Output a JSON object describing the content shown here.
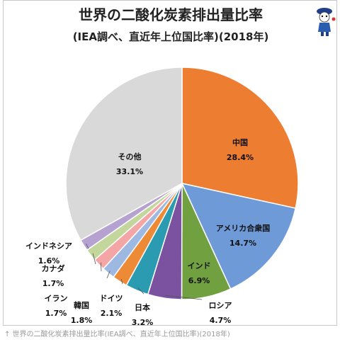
{
  "caption": "↑ 世界の二酸化炭素排出量比率(IEA調べ、直近年上位国比率)(2018年)",
  "chart_data": {
    "type": "pie",
    "title": "世界の二酸化炭素排出量比率",
    "subtitle": "(IEA調べ、直近年上位国比率)(2018年)",
    "unit": "%",
    "slices": [
      {
        "label": "中国",
        "value": 28.4,
        "color": "#ED7D31"
      },
      {
        "label": "アメリカ合衆国",
        "value": 14.7,
        "color": "#6F9AD8"
      },
      {
        "label": "インド",
        "value": 6.9,
        "color": "#70A040"
      },
      {
        "label": "ロシア",
        "value": 4.7,
        "color": "#7A52A0"
      },
      {
        "label": "日本",
        "value": 3.2,
        "color": "#2A9BB0"
      },
      {
        "label": "ドイツ",
        "value": 2.1,
        "color": "#ED8A36"
      },
      {
        "label": "韓国",
        "value": 1.8,
        "color": "#9DB9E2"
      },
      {
        "label": "イラン",
        "value": 1.7,
        "color": "#F4A6A6"
      },
      {
        "label": "カナダ",
        "value": 1.7,
        "color": "#C3D69B"
      },
      {
        "label": "インドネシア",
        "value": 1.6,
        "color": "#B6A2D0"
      },
      {
        "label": "その他",
        "value": 33.1,
        "color": "#D9D9D9"
      }
    ]
  },
  "logo_icon": "mascot-logo-icon"
}
